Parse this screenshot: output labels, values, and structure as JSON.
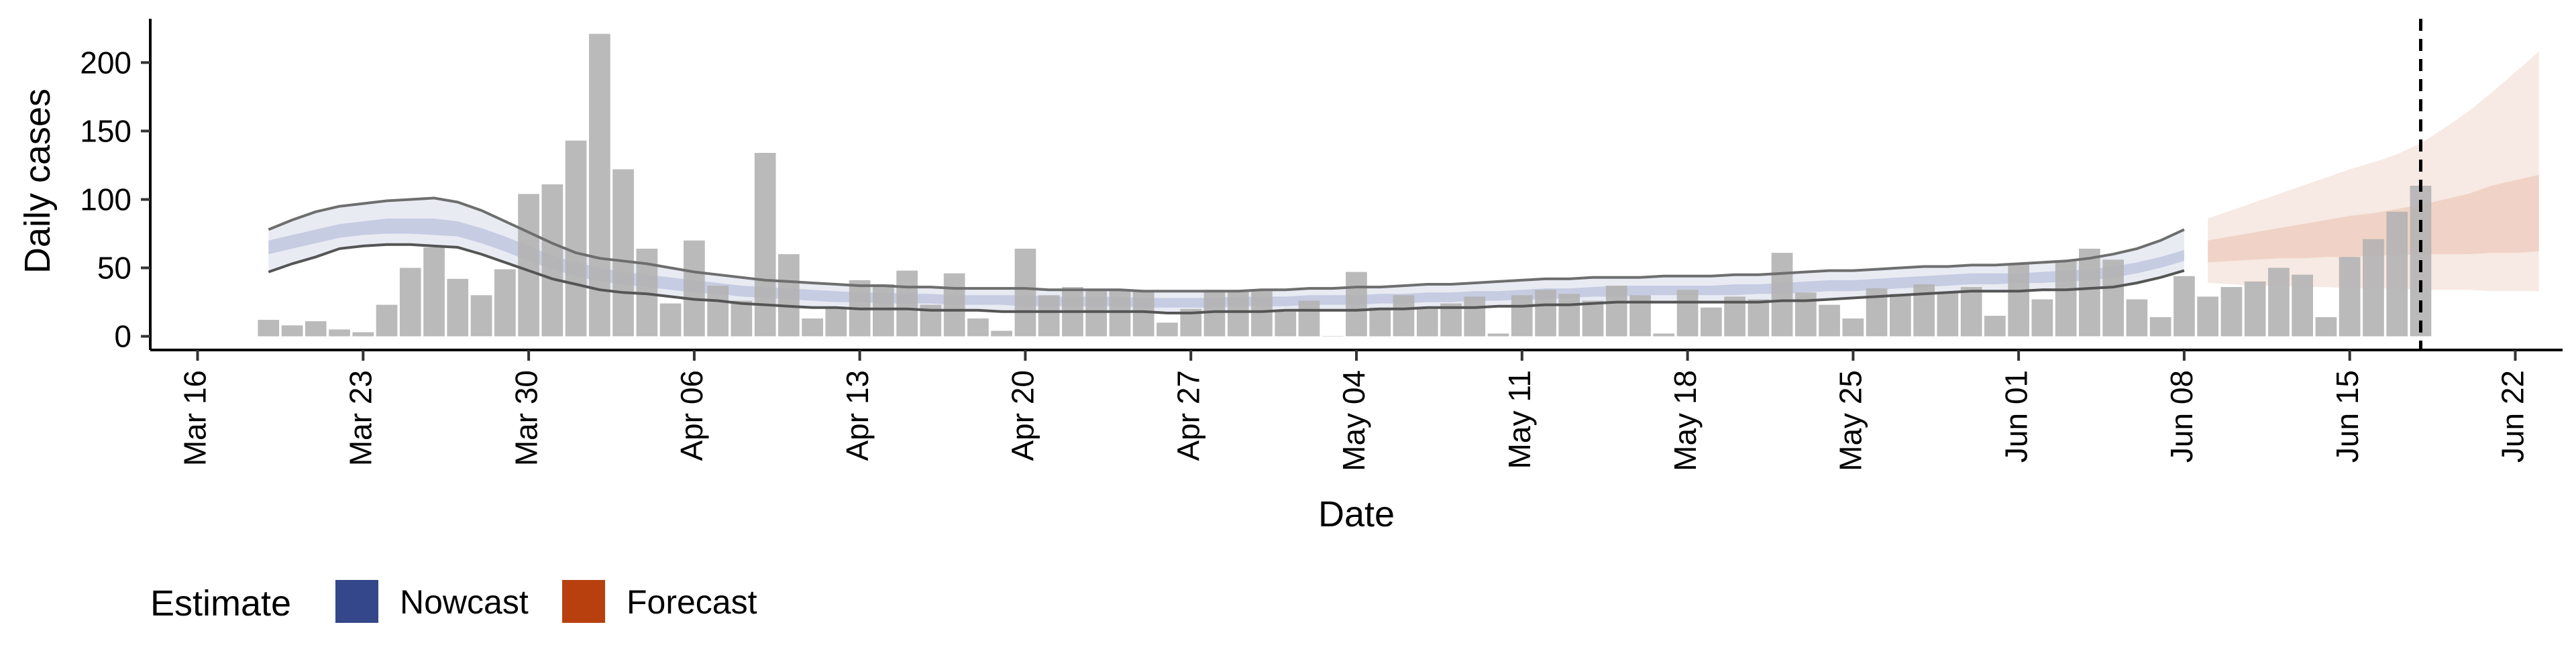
{
  "chart_data": {
    "type": "bar",
    "xlabel": "Date",
    "ylabel": "Daily cases",
    "x_ticks": [
      "Mar 16",
      "Mar 23",
      "Mar 30",
      "Apr 06",
      "Apr 13",
      "Apr 20",
      "Apr 27",
      "May 04",
      "May 11",
      "May 18",
      "May 25",
      "Jun 01",
      "Jun 08",
      "Jun 15",
      "Jun 22"
    ],
    "y_ticks": [
      "0",
      "50",
      "100",
      "150",
      "200"
    ],
    "xlim": [
      "2020-03-14",
      "2020-06-24"
    ],
    "ylim": [
      -10,
      232
    ],
    "grid": false,
    "legend": {
      "position": "bottom-left",
      "title": "Estimate",
      "items": [
        {
          "label": "Nowcast",
          "color": "#34478a"
        },
        {
          "label": "Forecast",
          "color": "#b8400f"
        }
      ]
    },
    "bar_color": "#b3b3b3",
    "reference_line": {
      "date": "2020-06-18",
      "style": "dashed"
    },
    "bars": {
      "start_date": "2020-03-19",
      "values": [
        12,
        8,
        11,
        5,
        3,
        23,
        50,
        65,
        42,
        30,
        49,
        104,
        111,
        143,
        221,
        122,
        64,
        24,
        70,
        37,
        26,
        134,
        60,
        13,
        21,
        41,
        38,
        48,
        23,
        46,
        13,
        4,
        64,
        30,
        36,
        34,
        34,
        33,
        10,
        20,
        34,
        34,
        33,
        18,
        26,
        0,
        47,
        21,
        30,
        20,
        24,
        29,
        2,
        30,
        34,
        31,
        26,
        37,
        30,
        2,
        34,
        21,
        29,
        27,
        61,
        32,
        23,
        13,
        35,
        31,
        38,
        32,
        36,
        15,
        53,
        27,
        55,
        64,
        56,
        27,
        14,
        44,
        29,
        36,
        40,
        50,
        45,
        14,
        58,
        71,
        91,
        110
      ]
    },
    "nowcast": {
      "start_date": "2020-03-19",
      "outer_lower": [
        47,
        53,
        58,
        64,
        66,
        67,
        67,
        66,
        65,
        60,
        54,
        48,
        42,
        38,
        34,
        32,
        31,
        29,
        27,
        26,
        24,
        23,
        22,
        21,
        21,
        20,
        20,
        20,
        19,
        19,
        19,
        18,
        18,
        18,
        18,
        18,
        18,
        18,
        17,
        17,
        18,
        18,
        18,
        19,
        19,
        19,
        19,
        20,
        20,
        21,
        21,
        21,
        22,
        22,
        23,
        23,
        24,
        25,
        25,
        25,
        25,
        25,
        25,
        25,
        26,
        26,
        27,
        28,
        29,
        30,
        31,
        32,
        33,
        33,
        33,
        34,
        34,
        35,
        36,
        39,
        43,
        48
      ],
      "inner_lower": [
        60,
        64,
        68,
        72,
        74,
        75,
        75,
        74,
        73,
        68,
        62,
        55,
        49,
        44,
        40,
        38,
        36,
        34,
        32,
        31,
        29,
        28,
        27,
        26,
        25,
        25,
        24,
        24,
        24,
        23,
        23,
        23,
        22,
        22,
        22,
        22,
        22,
        21,
        21,
        21,
        21,
        22,
        22,
        22,
        23,
        23,
        23,
        24,
        24,
        25,
        25,
        26,
        26,
        27,
        27,
        28,
        29,
        29,
        30,
        30,
        30,
        30,
        30,
        31,
        31,
        32,
        33,
        33,
        34,
        35,
        36,
        37,
        38,
        38,
        39,
        39,
        40,
        41,
        43,
        46,
        50,
        55
      ],
      "inner_upper": [
        70,
        74,
        78,
        82,
        84,
        86,
        86,
        86,
        84,
        79,
        73,
        66,
        59,
        54,
        50,
        47,
        45,
        43,
        41,
        39,
        37,
        36,
        35,
        34,
        33,
        32,
        32,
        31,
        31,
        30,
        30,
        30,
        30,
        29,
        29,
        29,
        29,
        28,
        28,
        28,
        28,
        29,
        29,
        29,
        30,
        30,
        30,
        31,
        31,
        32,
        32,
        33,
        33,
        34,
        35,
        35,
        36,
        37,
        37,
        37,
        37,
        37,
        38,
        38,
        39,
        40,
        41,
        41,
        42,
        43,
        44,
        45,
        46,
        46,
        46,
        47,
        48,
        49,
        51,
        54,
        58,
        63
      ],
      "outer_upper": [
        78,
        85,
        91,
        95,
        97,
        99,
        100,
        101,
        98,
        92,
        84,
        76,
        68,
        61,
        57,
        55,
        53,
        50,
        47,
        45,
        43,
        41,
        40,
        39,
        38,
        37,
        37,
        36,
        36,
        35,
        35,
        35,
        35,
        34,
        34,
        34,
        34,
        33,
        33,
        33,
        33,
        33,
        34,
        34,
        35,
        35,
        36,
        36,
        37,
        38,
        38,
        39,
        40,
        41,
        42,
        42,
        43,
        43,
        43,
        44,
        44,
        44,
        45,
        45,
        46,
        47,
        48,
        48,
        49,
        50,
        51,
        51,
        52,
        52,
        53,
        54,
        55,
        57,
        60,
        64,
        70,
        78
      ]
    },
    "forecast": {
      "start_date": "2020-06-09",
      "outer_lower": [
        39,
        38,
        37,
        37,
        36,
        36,
        35,
        35,
        35,
        34,
        34,
        34,
        33,
        33,
        33
      ],
      "inner_lower": [
        54,
        55,
        56,
        57,
        57,
        58,
        58,
        59,
        59,
        60,
        60,
        60,
        61,
        61,
        62
      ],
      "inner_upper": [
        70,
        73,
        76,
        79,
        82,
        85,
        88,
        90,
        93,
        96,
        100,
        104,
        110,
        114,
        118
      ],
      "outer_upper": [
        86,
        92,
        98,
        104,
        110,
        116,
        122,
        127,
        133,
        141,
        152,
        164,
        178,
        193,
        208
      ]
    }
  }
}
